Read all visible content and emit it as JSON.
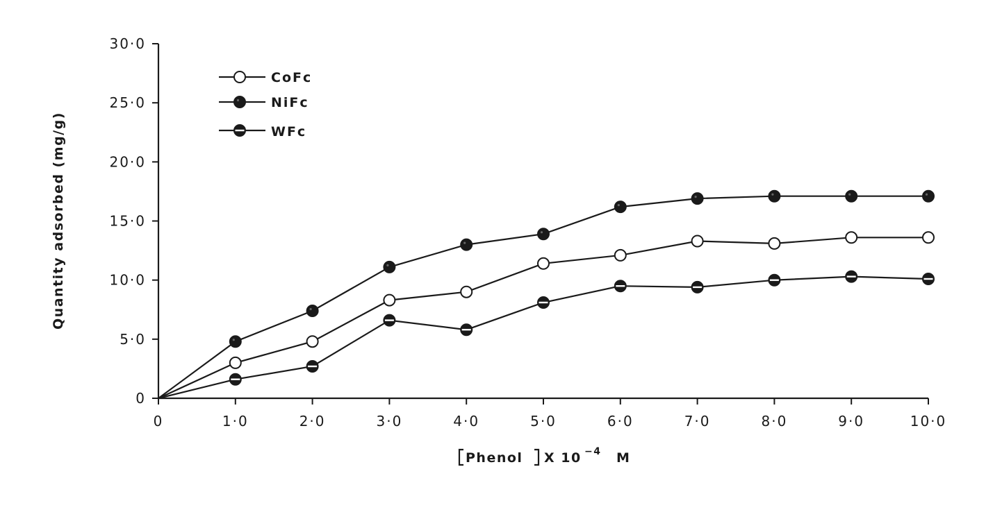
{
  "chart_data": {
    "type": "line",
    "title": "",
    "xlabel": "[Phenol] X 10⁻⁴ M",
    "xlabel_main": "Phenol",
    "xlabel_suffix": "X 10",
    "xlabel_exp": "−4",
    "xlabel_unit": "M",
    "ylabel": "Quantity adsorbed (mg/g)",
    "xlim": [
      0,
      10
    ],
    "ylim": [
      0,
      30
    ],
    "x_ticks": [
      0,
      1,
      2,
      3,
      4,
      5,
      6,
      7,
      8,
      9,
      10
    ],
    "x_tick_labels": [
      "0",
      "1·0",
      "2·0",
      "3·0",
      "4·0",
      "5·0",
      "6·0",
      "7·0",
      "8·0",
      "9·0",
      "10·0"
    ],
    "y_ticks": [
      0,
      5,
      10,
      15,
      20,
      25,
      30
    ],
    "y_tick_labels": [
      "0",
      "5·0",
      "10·0",
      "15·0",
      "20·0",
      "25·0",
      "30·0"
    ],
    "grid": false,
    "legend_position": "top-left",
    "series": [
      {
        "name": "CoFc",
        "marker": "open-circle",
        "x": [
          0,
          1,
          2,
          3,
          4,
          5,
          6,
          7,
          8,
          9,
          10
        ],
        "y": [
          0,
          3.0,
          4.8,
          8.3,
          9.0,
          11.4,
          12.1,
          13.3,
          13.1,
          13.6,
          13.6
        ]
      },
      {
        "name": "NiFc",
        "marker": "filled-circle",
        "x": [
          0,
          1,
          2,
          3,
          4,
          5,
          6,
          7,
          8,
          9,
          10
        ],
        "y": [
          0,
          4.8,
          7.4,
          11.1,
          13.0,
          13.9,
          16.2,
          16.9,
          17.1,
          17.1,
          17.1
        ]
      },
      {
        "name": "WFc",
        "marker": "half-filled-circle",
        "x": [
          0,
          1,
          2,
          3,
          4,
          5,
          6,
          7,
          8,
          9,
          10
        ],
        "y": [
          0,
          1.6,
          2.7,
          6.6,
          5.8,
          8.1,
          9.5,
          9.4,
          10.0,
          10.3,
          10.1
        ]
      }
    ]
  }
}
